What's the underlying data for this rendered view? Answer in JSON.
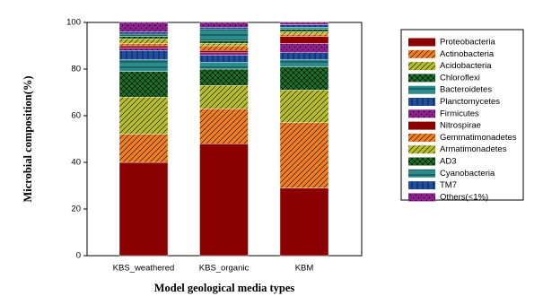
{
  "chart_data": {
    "type": "stacked_bar",
    "x_label": "Model geological media types",
    "y_label": "Microbial composition(%)",
    "categories": [
      "KBS_weathered",
      "KBS_organic",
      "KBM"
    ],
    "ylim": [
      0,
      100
    ],
    "yticks": [
      0,
      20,
      40,
      60,
      80,
      100
    ],
    "legend": "right",
    "series": [
      {
        "name": "Proteobacteria",
        "color": "#8b0000",
        "hatch": "none",
        "values": [
          40,
          48,
          29
        ]
      },
      {
        "name": "Actinobacteria",
        "color": "#f07f1f",
        "hatch": "diagonal",
        "values": [
          12,
          15,
          28
        ]
      },
      {
        "name": "Acidobacteria",
        "color": "#b8bd2a",
        "hatch": "diagonal",
        "values": [
          16,
          10,
          14
        ]
      },
      {
        "name": "Chloroflexi",
        "color": "#1f6f2a",
        "hatch": "cross",
        "values": [
          11,
          7,
          10
        ]
      },
      {
        "name": "Bacteroidetes",
        "color": "#2a8c8c",
        "hatch": "horizontal",
        "values": [
          5,
          3,
          3
        ]
      },
      {
        "name": "Planctomycetes",
        "color": "#1f4f9e",
        "hatch": "vertical",
        "values": [
          4,
          3,
          3
        ]
      },
      {
        "name": "Firmicutes",
        "color": "#8e1f8e",
        "hatch": "dots",
        "values": [
          1,
          1,
          4
        ]
      },
      {
        "name": "Nitrospirae",
        "color": "#8b0000",
        "hatch": "none",
        "values": [
          1,
          1,
          3
        ]
      },
      {
        "name": "Gemmatimonadetes",
        "color": "#f07f1f",
        "hatch": "diagonal",
        "values": [
          1,
          2,
          1
        ]
      },
      {
        "name": "Armatimonadetes",
        "color": "#b8bd2a",
        "hatch": "diagonal",
        "values": [
          2,
          1,
          1
        ]
      },
      {
        "name": "AD3",
        "color": "#1f6f2a",
        "hatch": "cross",
        "values": [
          1,
          1,
          1
        ]
      },
      {
        "name": "Cyanobacteria",
        "color": "#2a8c8c",
        "hatch": "horizontal",
        "values": [
          1,
          5,
          1
        ]
      },
      {
        "name": "TM7",
        "color": "#1f4f9e",
        "hatch": "vertical",
        "values": [
          1,
          1,
          1
        ]
      },
      {
        "name": "Others(<1%)",
        "color": "#8e1f8e",
        "hatch": "dots",
        "values": [
          4,
          2,
          1
        ]
      }
    ]
  }
}
